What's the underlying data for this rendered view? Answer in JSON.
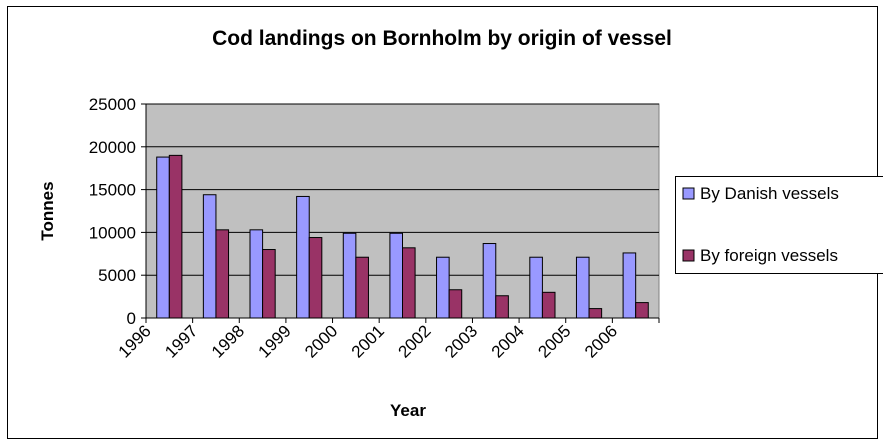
{
  "chart_data": {
    "type": "bar",
    "title": "Cod landings on Bornholm by origin of vessel",
    "xlabel": "Year",
    "ylabel": "Tonnes",
    "categories": [
      "1996",
      "1997",
      "1998",
      "1999",
      "2000",
      "2001",
      "2002",
      "2003",
      "2004",
      "2005",
      "2006"
    ],
    "series": [
      {
        "name": "By Danish vessels",
        "color": "#9999ff",
        "values": [
          18800,
          14400,
          10300,
          14200,
          9900,
          9900,
          7100,
          8700,
          7100,
          7100,
          7600
        ]
      },
      {
        "name": "By foreign vessels",
        "color": "#993366",
        "values": [
          19000,
          10300,
          8000,
          9400,
          7100,
          8200,
          3300,
          2600,
          3000,
          1100,
          1800
        ]
      }
    ],
    "ylim": [
      0,
      25000
    ],
    "yticks": [
      "0",
      "5000",
      "10000",
      "15000",
      "20000",
      "25000"
    ],
    "grid": true,
    "plot_background": "#c0c0c0",
    "legend_position": "right"
  }
}
